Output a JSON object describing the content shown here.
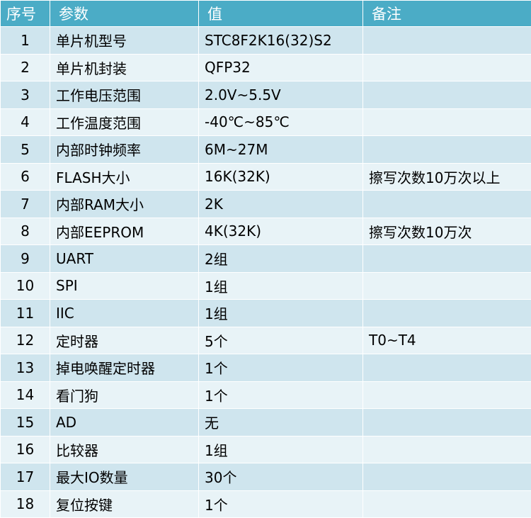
{
  "colors": {
    "header_bg": "#4bacc6",
    "header_text": "#ffffff",
    "row_odd_bg": "#cfe5ee",
    "row_even_bg": "#e8f3f7"
  },
  "table": {
    "headers": [
      "序号",
      "参数",
      "值",
      "备注"
    ],
    "rows": [
      [
        "1",
        "单片机型号",
        "STC8F2K16(32)S2",
        ""
      ],
      [
        "2",
        "单片机封装",
        "QFP32",
        ""
      ],
      [
        "3",
        "工作电压范围",
        "2.0V~5.5V",
        ""
      ],
      [
        "4",
        "工作温度范围",
        "-40℃~85℃",
        ""
      ],
      [
        "5",
        "内部时钟频率",
        "6M~27M",
        ""
      ],
      [
        "6",
        "FLASH大小",
        "16K(32K)",
        "擦写次数10万次以上"
      ],
      [
        "7",
        "内部RAM大小",
        "2K",
        ""
      ],
      [
        "8",
        "内部EEPROM",
        "4K(32K)",
        "擦写次数10万次"
      ],
      [
        "9",
        "UART",
        "2组",
        ""
      ],
      [
        "10",
        "SPI",
        "1组",
        ""
      ],
      [
        "11",
        "IIC",
        "1组",
        ""
      ],
      [
        "12",
        "定时器",
        "5个",
        "T0~T4"
      ],
      [
        "13",
        "掉电唤醒定时器",
        "1个",
        ""
      ],
      [
        "14",
        "看门狗",
        "1个",
        ""
      ],
      [
        "15",
        "AD",
        "无",
        ""
      ],
      [
        "16",
        "比较器",
        "1组",
        ""
      ],
      [
        "17",
        "最大IO数量",
        "30个",
        ""
      ],
      [
        "18",
        "复位按键",
        "1个",
        ""
      ]
    ]
  }
}
